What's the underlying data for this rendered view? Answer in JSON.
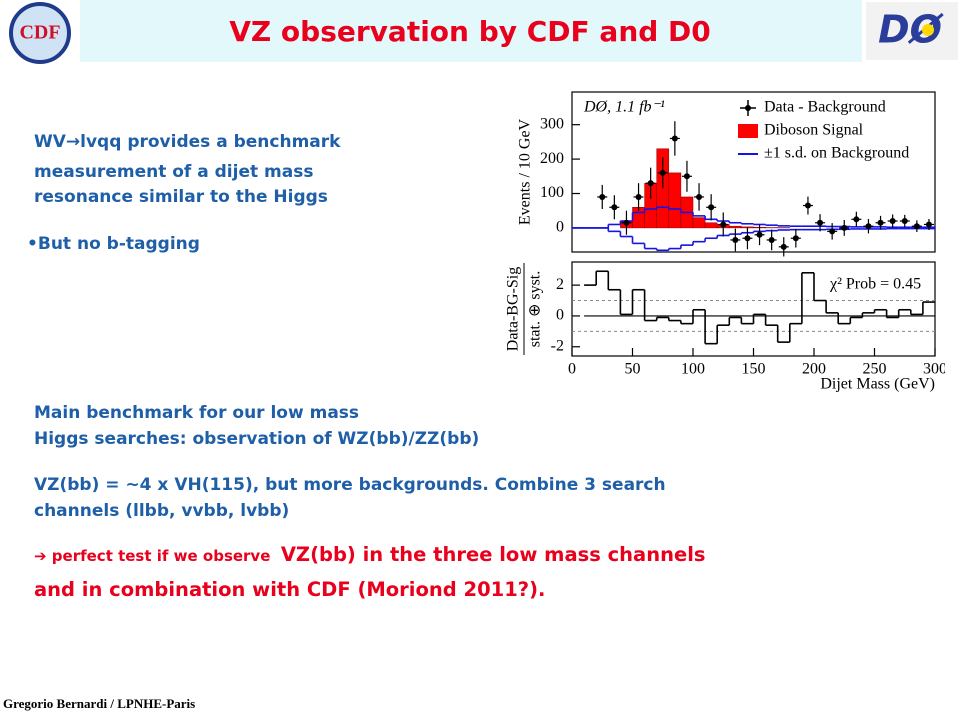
{
  "slide": {
    "header": {
      "title": "VZ observation by CDF and D0",
      "logo_left": "CDF",
      "logo_right": "DØ"
    },
    "intro_lines": [
      "WV→lvqq provides a benchmark",
      "measurement of a dijet mass",
      "resonance similar to the Higgs"
    ],
    "bullet": "But no b-tagging",
    "main_lines": [
      "Main benchmark for our low mass",
      "Higgs searches: observation of WZ(bb)/ZZ(bb)"
    ],
    "vz_lines": [
      "VZ(bb) = ~4 x VH(115), but more backgrounds. Combine 3 search",
      "channels (llbb, vvbb, lvbb)"
    ],
    "conclusion": {
      "lead": "perfect test if we observe",
      "line1": "VZ(bb) in the three low mass channels",
      "line2": "and in combination with CDF (Moriond 2011?)."
    },
    "footer": "Gregorio Bernardi / LPNHE-Paris"
  },
  "chart_data": [
    {
      "type": "histogram",
      "annotation": "DØ, 1.1 fb⁻¹",
      "ylabel": "Events / 10 GeV",
      "xlim": [
        0,
        300
      ],
      "ylim": [
        -70,
        395
      ],
      "yticks": [
        0,
        100,
        200,
        300
      ],
      "bins": [
        0,
        10,
        20,
        30,
        40,
        50,
        60,
        70,
        80,
        90,
        100,
        110,
        120,
        130,
        140,
        150,
        160,
        170,
        180,
        190,
        200,
        210,
        220,
        230,
        240,
        250,
        260,
        270,
        280,
        290,
        300
      ],
      "series": [
        {
          "name": "Data - Background",
          "color": "#000000",
          "x": [
            25,
            35,
            45,
            55,
            65,
            75,
            85,
            95,
            105,
            115,
            125,
            135,
            145,
            155,
            165,
            175,
            185,
            195,
            205,
            215,
            225,
            235,
            245,
            255,
            265,
            275,
            285,
            295
          ],
          "values": [
            90,
            60,
            15,
            90,
            130,
            160,
            260,
            150,
            90,
            60,
            10,
            -35,
            -30,
            -20,
            -35,
            -55,
            -30,
            65,
            15,
            -10,
            0,
            25,
            5,
            15,
            20,
            20,
            5,
            10
          ],
          "errors": [
            35,
            35,
            35,
            40,
            45,
            45,
            50,
            45,
            40,
            38,
            35,
            33,
            32,
            30,
            30,
            28,
            27,
            26,
            25,
            24,
            23,
            22,
            21,
            20,
            19,
            18,
            17,
            16
          ]
        },
        {
          "name": "Diboson Signal",
          "color": "#ff0000",
          "values": [
            0,
            0,
            0,
            0,
            20,
            60,
            130,
            230,
            160,
            90,
            30,
            15,
            10,
            5,
            3,
            2,
            1,
            1,
            0,
            0,
            0,
            0,
            0,
            0,
            0,
            0,
            0,
            0,
            0,
            0
          ]
        },
        {
          "name": "±1 s.d. on Background",
          "color": "#1414e6",
          "values": [
            0,
            0,
            0,
            10,
            20,
            45,
            55,
            60,
            55,
            45,
            35,
            25,
            20,
            15,
            12,
            10,
            8,
            6,
            5,
            5,
            5,
            4,
            4,
            3,
            3,
            3,
            2,
            2,
            2,
            2
          ],
          "lower_values": [
            0,
            0,
            0,
            -10,
            -25,
            -45,
            -60,
            -65,
            -60,
            -50,
            -40,
            -30,
            -22,
            -18,
            -14,
            -10,
            -8,
            -6,
            -5,
            -5,
            -5,
            -4,
            -4,
            -3,
            -3,
            -3,
            -2,
            -2,
            -2,
            -2
          ]
        }
      ]
    },
    {
      "type": "histogram",
      "annotation": "χ² Prob = 0.45",
      "ylabel": [
        "Data-BG-Sig",
        "stat. ⊕ syst."
      ],
      "xlabel": "Dijet Mass (GeV)",
      "xlim": [
        0,
        300
      ],
      "ylim": [
        -2.6,
        3.5
      ],
      "yticks": [
        -2,
        0,
        2
      ],
      "xticks": [
        0,
        50,
        100,
        150,
        200,
        250,
        300
      ],
      "dashed_lines": [
        -1,
        1
      ],
      "bins": [
        10,
        20,
        30,
        40,
        50,
        60,
        70,
        80,
        90,
        100,
        110,
        120,
        130,
        140,
        150,
        160,
        170,
        180,
        190,
        200,
        210,
        220,
        230,
        240,
        250,
        260,
        270,
        280,
        290,
        300
      ],
      "series": [
        {
          "color": "#000000",
          "values": [
            2,
            2.9,
            1.7,
            0.1,
            1.7,
            -0.3,
            -0.1,
            -0.3,
            -0.5,
            0.4,
            -1.8,
            -0.6,
            -0.1,
            -0.5,
            0.1,
            -0.6,
            -1.7,
            -0.5,
            2.8,
            1,
            0.2,
            -0.5,
            -0.1,
            0.2,
            0.4,
            -0.1,
            0.4,
            0.1,
            0.9
          ]
        }
      ]
    }
  ]
}
